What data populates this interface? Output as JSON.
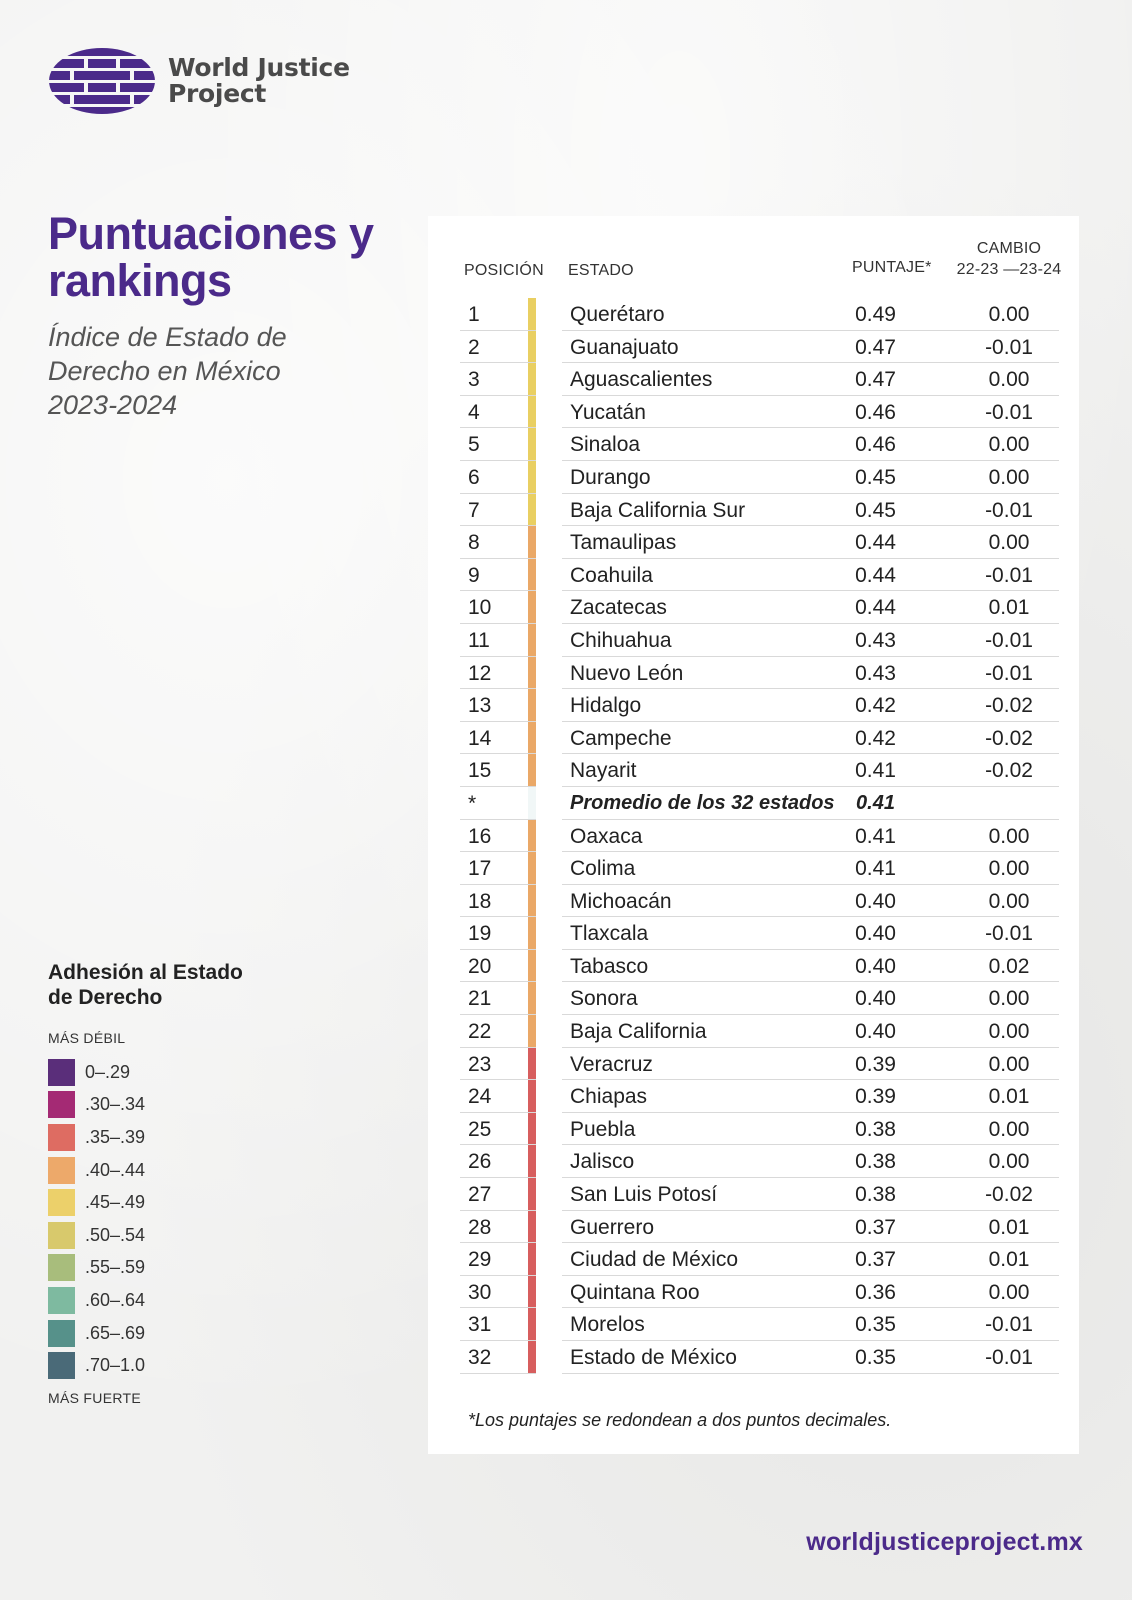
{
  "logo": {
    "line1": "World Justice",
    "line2": "Project",
    "icon": "globe-icon"
  },
  "title": "Puntuaciones y rankings",
  "subtitle": {
    "line1": "Índice de Estado de",
    "line2": "Derecho en México",
    "line3": "2023-2024"
  },
  "table": {
    "headers": {
      "position": "POSICIÓN",
      "state": "ESTADO",
      "score": "PUNTAJE*",
      "change_line1": "CAMBIO",
      "change_line2": "22-23 —23-24"
    },
    "rows": [
      {
        "pos": "1",
        "state": "Querétaro",
        "score": "0.49",
        "change": "0.00",
        "color": "#e9cf62"
      },
      {
        "pos": "2",
        "state": "Guanajuato",
        "score": "0.47",
        "change": "-0.01",
        "color": "#e9cf62"
      },
      {
        "pos": "3",
        "state": "Aguascalientes",
        "score": "0.47",
        "change": "0.00",
        "color": "#e9cf62"
      },
      {
        "pos": "4",
        "state": "Yucatán",
        "score": "0.46",
        "change": "-0.01",
        "color": "#e9cf62"
      },
      {
        "pos": "5",
        "state": "Sinaloa",
        "score": "0.46",
        "change": "0.00",
        "color": "#e9cf62"
      },
      {
        "pos": "6",
        "state": "Durango",
        "score": "0.45",
        "change": "0.00",
        "color": "#e9cf62"
      },
      {
        "pos": "7",
        "state": "Baja California Sur",
        "score": "0.45",
        "change": "-0.01",
        "color": "#e9cf62"
      },
      {
        "pos": "8",
        "state": "Tamaulipas",
        "score": "0.44",
        "change": "0.00",
        "color": "#eaa867"
      },
      {
        "pos": "9",
        "state": "Coahuila",
        "score": "0.44",
        "change": "-0.01",
        "color": "#eaa867"
      },
      {
        "pos": "10",
        "state": "Zacatecas",
        "score": "0.44",
        "change": "0.01",
        "color": "#eaa867"
      },
      {
        "pos": "11",
        "state": "Chihuahua",
        "score": "0.43",
        "change": "-0.01",
        "color": "#eaa867"
      },
      {
        "pos": "12",
        "state": "Nuevo León",
        "score": "0.43",
        "change": "-0.01",
        "color": "#eaa867"
      },
      {
        "pos": "13",
        "state": "Hidalgo",
        "score": "0.42",
        "change": "-0.02",
        "color": "#eaa867"
      },
      {
        "pos": "14",
        "state": "Campeche",
        "score": "0.42",
        "change": "-0.02",
        "color": "#eaa867"
      },
      {
        "pos": "15",
        "state": "Nayarit",
        "score": "0.41",
        "change": "-0.02",
        "color": "#eaa867"
      },
      {
        "pos": "*",
        "state": "Promedio de los 32 estados",
        "score": "0.41",
        "change": "",
        "color": "#f1f7f7",
        "avg": true
      },
      {
        "pos": "16",
        "state": "Oaxaca",
        "score": "0.41",
        "change": "0.00",
        "color": "#eaa867"
      },
      {
        "pos": "17",
        "state": "Colima",
        "score": "0.41",
        "change": "0.00",
        "color": "#eaa867"
      },
      {
        "pos": "18",
        "state": "Michoacán",
        "score": "0.40",
        "change": "0.00",
        "color": "#eaa867"
      },
      {
        "pos": "19",
        "state": "Tlaxcala",
        "score": "0.40",
        "change": "-0.01",
        "color": "#eaa867"
      },
      {
        "pos": "20",
        "state": "Tabasco",
        "score": "0.40",
        "change": "0.02",
        "color": "#eaa867"
      },
      {
        "pos": "21",
        "state": "Sonora",
        "score": "0.40",
        "change": "0.00",
        "color": "#eaa867"
      },
      {
        "pos": "22",
        "state": "Baja California",
        "score": "0.40",
        "change": "0.00",
        "color": "#eaa867"
      },
      {
        "pos": "23",
        "state": "Veracruz",
        "score": "0.39",
        "change": "0.00",
        "color": "#d75e5e"
      },
      {
        "pos": "24",
        "state": "Chiapas",
        "score": "0.39",
        "change": "0.01",
        "color": "#d75e5e"
      },
      {
        "pos": "25",
        "state": "Puebla",
        "score": "0.38",
        "change": "0.00",
        "color": "#d75e5e"
      },
      {
        "pos": "26",
        "state": "Jalisco",
        "score": "0.38",
        "change": "0.00",
        "color": "#d75e5e"
      },
      {
        "pos": "27",
        "state": "San Luis Potosí",
        "score": "0.38",
        "change": "-0.02",
        "color": "#d75e5e"
      },
      {
        "pos": "28",
        "state": "Guerrero",
        "score": "0.37",
        "change": "0.01",
        "color": "#d75e5e"
      },
      {
        "pos": "29",
        "state": "Ciudad de México",
        "score": "0.37",
        "change": "0.01",
        "color": "#d75e5e"
      },
      {
        "pos": "30",
        "state": "Quintana Roo",
        "score": "0.36",
        "change": "0.00",
        "color": "#d75e5e"
      },
      {
        "pos": "31",
        "state": "Morelos",
        "score": "0.35",
        "change": "-0.01",
        "color": "#d75e5e"
      },
      {
        "pos": "32",
        "state": "Estado de México",
        "score": "0.35",
        "change": "-0.01",
        "color": "#d75e5e"
      }
    ],
    "footnote": "*Los puntajes se redondean a dos puntos decimales."
  },
  "legend": {
    "title_line1": "Adhesión al Estado",
    "title_line2": "de Derecho",
    "top_caption": "MÁS DÉBIL",
    "bottom_caption": "MÁS FUERTE",
    "items": [
      {
        "label": "0–.29",
        "color": "#5a2e7a"
      },
      {
        "label": ".30–.34",
        "color": "#a42a74"
      },
      {
        "label": ".35–.39",
        "color": "#de6c62"
      },
      {
        "label": ".40–.44",
        "color": "#eda96a"
      },
      {
        "label": ".45–.49",
        "color": "#ecd06a"
      },
      {
        "label": ".50–.54",
        "color": "#d8c96c"
      },
      {
        "label": ".55–.59",
        "color": "#a8bd7c"
      },
      {
        "label": ".60–.64",
        "color": "#7ebaa0"
      },
      {
        "label": ".65–.69",
        "color": "#56918a"
      },
      {
        "label": ".70–1.0",
        "color": "#4a6a78"
      }
    ]
  },
  "url": "worldjusticeproject.mx",
  "colors": {
    "brand": "#4b2a8a"
  }
}
